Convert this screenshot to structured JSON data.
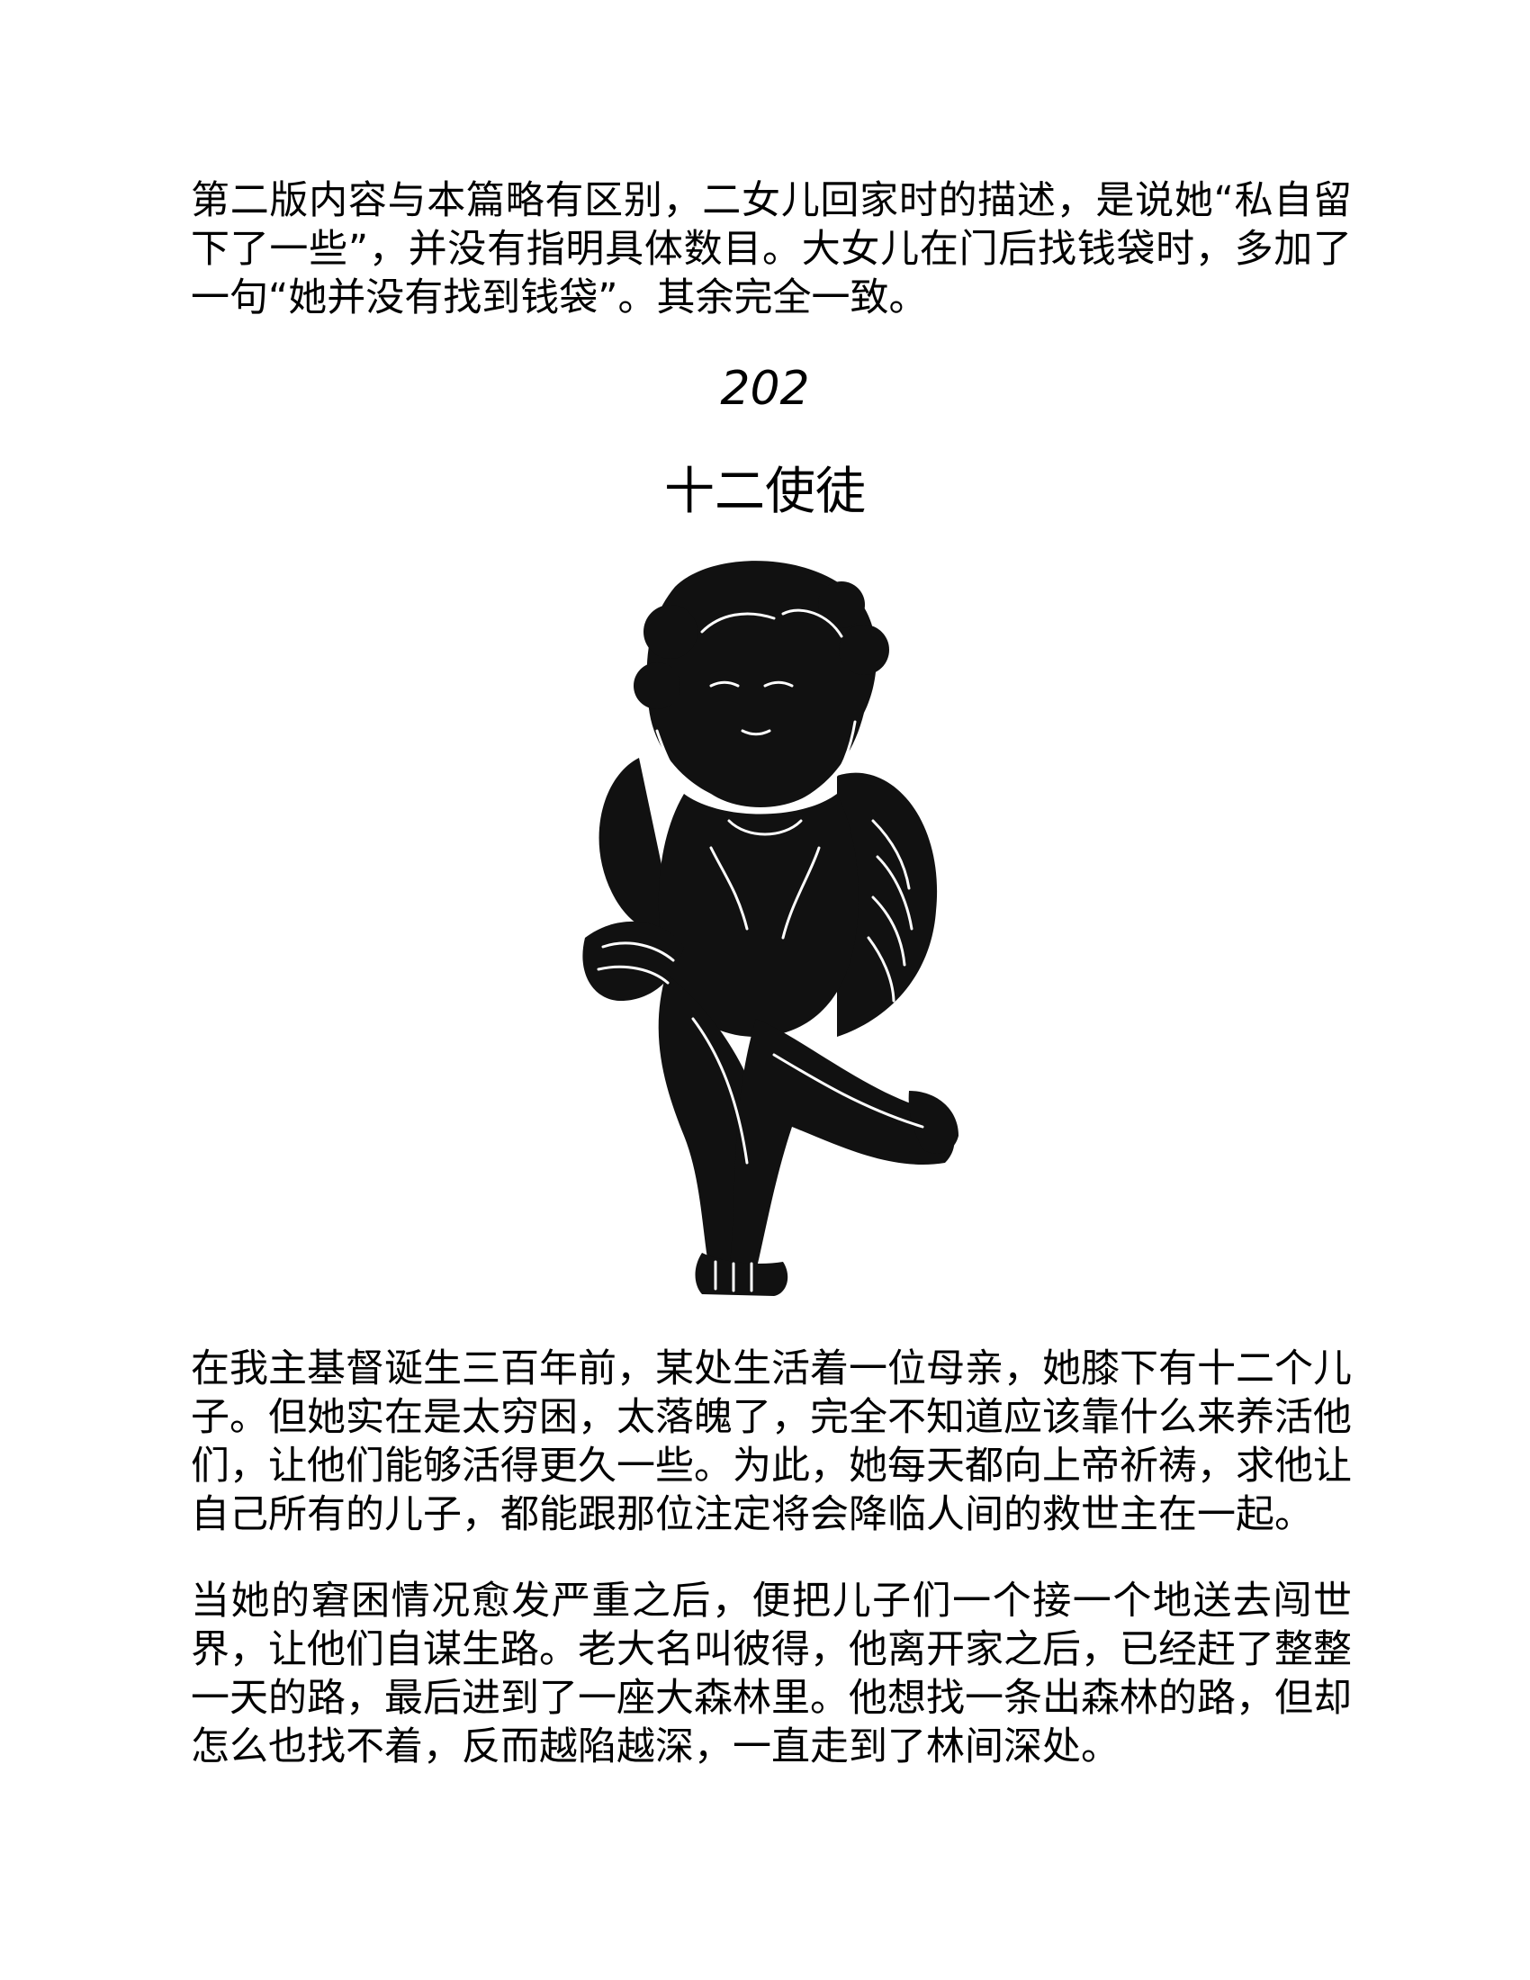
{
  "note": {
    "text": "第二版内容与本篇略有区别，二女儿回家时的描述，是说她“私自留下了一些”，并没有指明具体数目。大女儿在门后找钱袋时，多加了一句“她并没有找到钱袋”。其余完全一致。"
  },
  "story": {
    "number": "202",
    "title": "十二使徒",
    "illustration": {
      "subject": "cherub-icon",
      "fill_color": "#111111",
      "line_color": "#ffffff"
    },
    "paragraphs": [
      "在我主基督诞生三百年前，某处生活着一位母亲，她膝下有十二个儿子。但她实在是太穷困，太落魄了，完全不知道应该靠什么来养活他们，让他们能够活得更久一些。为此，她每天都向上帝祈祷，求他让自己所有的儿子，都能跟那位注定将会降临人间的救世主在一起。",
      "当她的窘困情况愈发严重之后，便把儿子们一个接一个地送去闯世界，让他们自谋生路。老大名叫彼得，他离开家之后，已经赶了整整一天的路，最后进到了一座大森林里。他想找一条出森林的路，但却怎么也找不着，反而越陷越深，一直走到了林间深处。"
    ]
  }
}
